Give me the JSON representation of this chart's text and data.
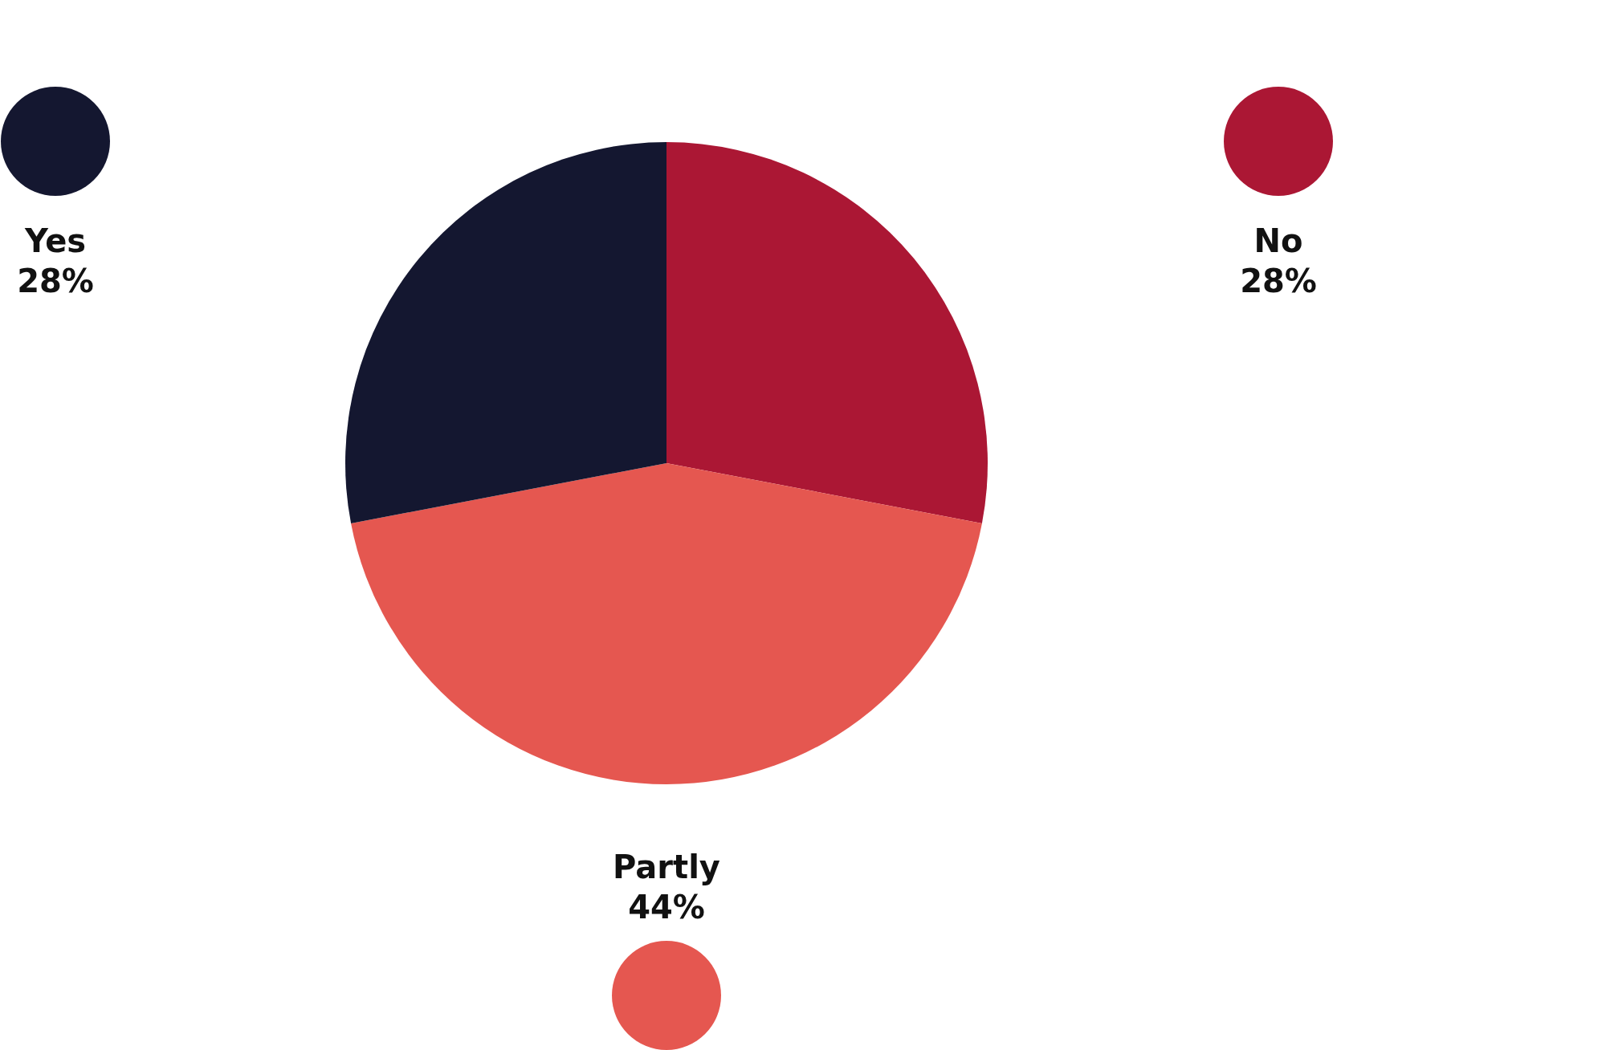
{
  "chart_data": {
    "type": "pie",
    "categories": [
      "No",
      "Partly",
      "Yes"
    ],
    "values": [
      28,
      44,
      28
    ],
    "colors": [
      "#ab1734",
      "#e55750",
      "#141730"
    ],
    "value_labels": [
      "28%",
      "44%",
      "28%"
    ],
    "legend": false
  }
}
